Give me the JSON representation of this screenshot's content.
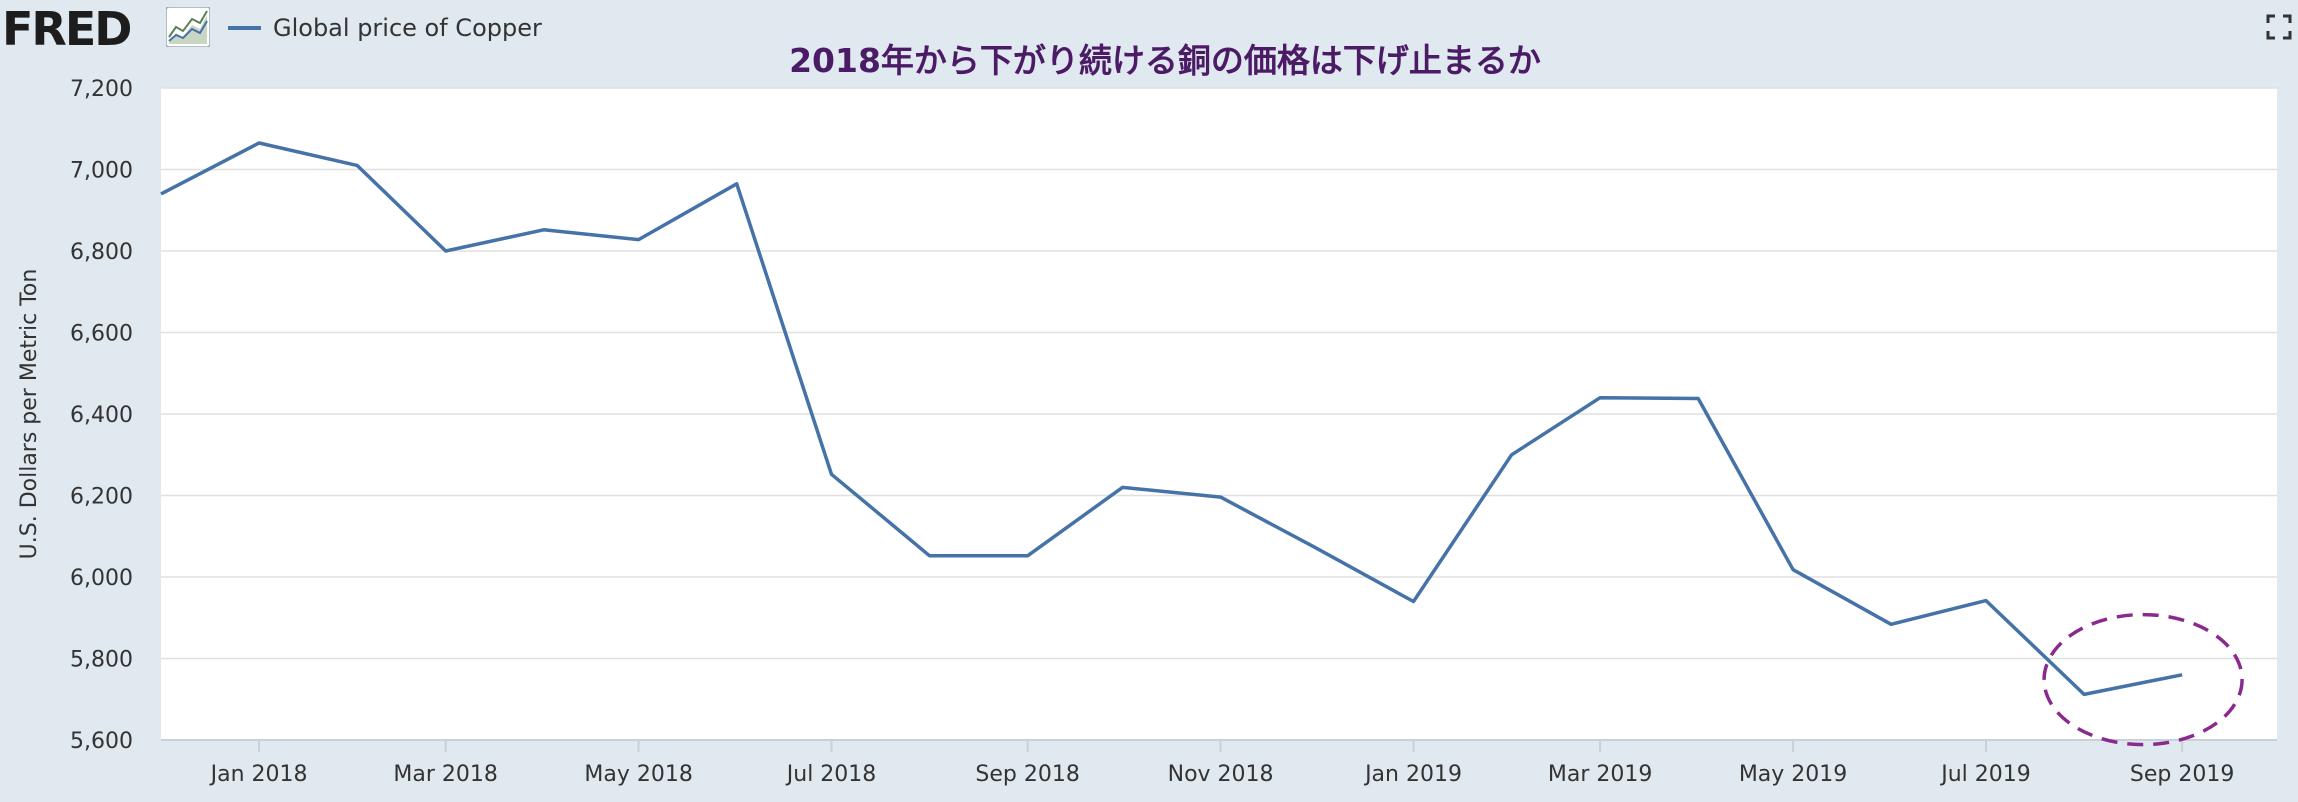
{
  "header": {
    "logo_text": "FRED",
    "legend_label": "Global price of Copper"
  },
  "colors": {
    "series": "#4572a7",
    "title": "#4b1b66",
    "annotation": "#8a2a8f",
    "background": "#e1e9f0"
  },
  "icons": {
    "logo_graph": "line-graph-icon",
    "fullscreen": "fullscreen-icon"
  },
  "chart_data": {
    "type": "line",
    "title": "2018年から下がり続ける銅の価格は下げ止まるか",
    "ylabel": "U.S. Dollars per Metric Ton",
    "xlabel": "",
    "ylim": [
      5600,
      7200
    ],
    "yticks": [
      5600,
      5800,
      6000,
      6200,
      6400,
      6600,
      6800,
      7000,
      7200
    ],
    "ytick_labels": [
      "5,600",
      "5,800",
      "6,000",
      "6,200",
      "6,400",
      "6,600",
      "6,800",
      "7,000",
      "7,200"
    ],
    "xlim": [
      "2017-12-01",
      "2019-10-01"
    ],
    "xtick_labels": [
      {
        "date": "2018-01-01",
        "label": "Jan 2018"
      },
      {
        "date": "2018-03-01",
        "label": "Mar 2018"
      },
      {
        "date": "2018-05-01",
        "label": "May 2018"
      },
      {
        "date": "2018-07-01",
        "label": "Jul 2018"
      },
      {
        "date": "2018-09-01",
        "label": "Sep 2018"
      },
      {
        "date": "2018-11-01",
        "label": "Nov 2018"
      },
      {
        "date": "2019-01-01",
        "label": "Jan 2019"
      },
      {
        "date": "2019-03-01",
        "label": "Mar 2019"
      },
      {
        "date": "2019-05-01",
        "label": "May 2019"
      },
      {
        "date": "2019-07-01",
        "label": "Jul 2019"
      },
      {
        "date": "2019-09-01",
        "label": "Sep 2019"
      }
    ],
    "grid": true,
    "legend_position": "top-left",
    "series": [
      {
        "name": "Global price of Copper",
        "x": [
          "2017-12-01",
          "2018-01-01",
          "2018-02-01",
          "2018-03-01",
          "2018-04-01",
          "2018-05-01",
          "2018-06-01",
          "2018-07-01",
          "2018-08-01",
          "2018-09-01",
          "2018-10-01",
          "2018-11-01",
          "2018-12-01",
          "2019-01-01",
          "2019-02-01",
          "2019-03-01",
          "2019-04-01",
          "2019-05-01",
          "2019-06-01",
          "2019-07-01",
          "2019-08-01",
          "2019-09-01"
        ],
        "y": [
          6940,
          7065,
          7010,
          6800,
          6852,
          6828,
          6965,
          6252,
          6052,
          6052,
          6220,
          6196,
          6072,
          5940,
          6300,
          6440,
          6438,
          6018,
          5884,
          5942,
          5712,
          5760
        ]
      }
    ],
    "annotations": [
      {
        "type": "dashed-ellipse",
        "around": [
          "2019-08-01",
          "2019-09-01"
        ]
      }
    ]
  }
}
